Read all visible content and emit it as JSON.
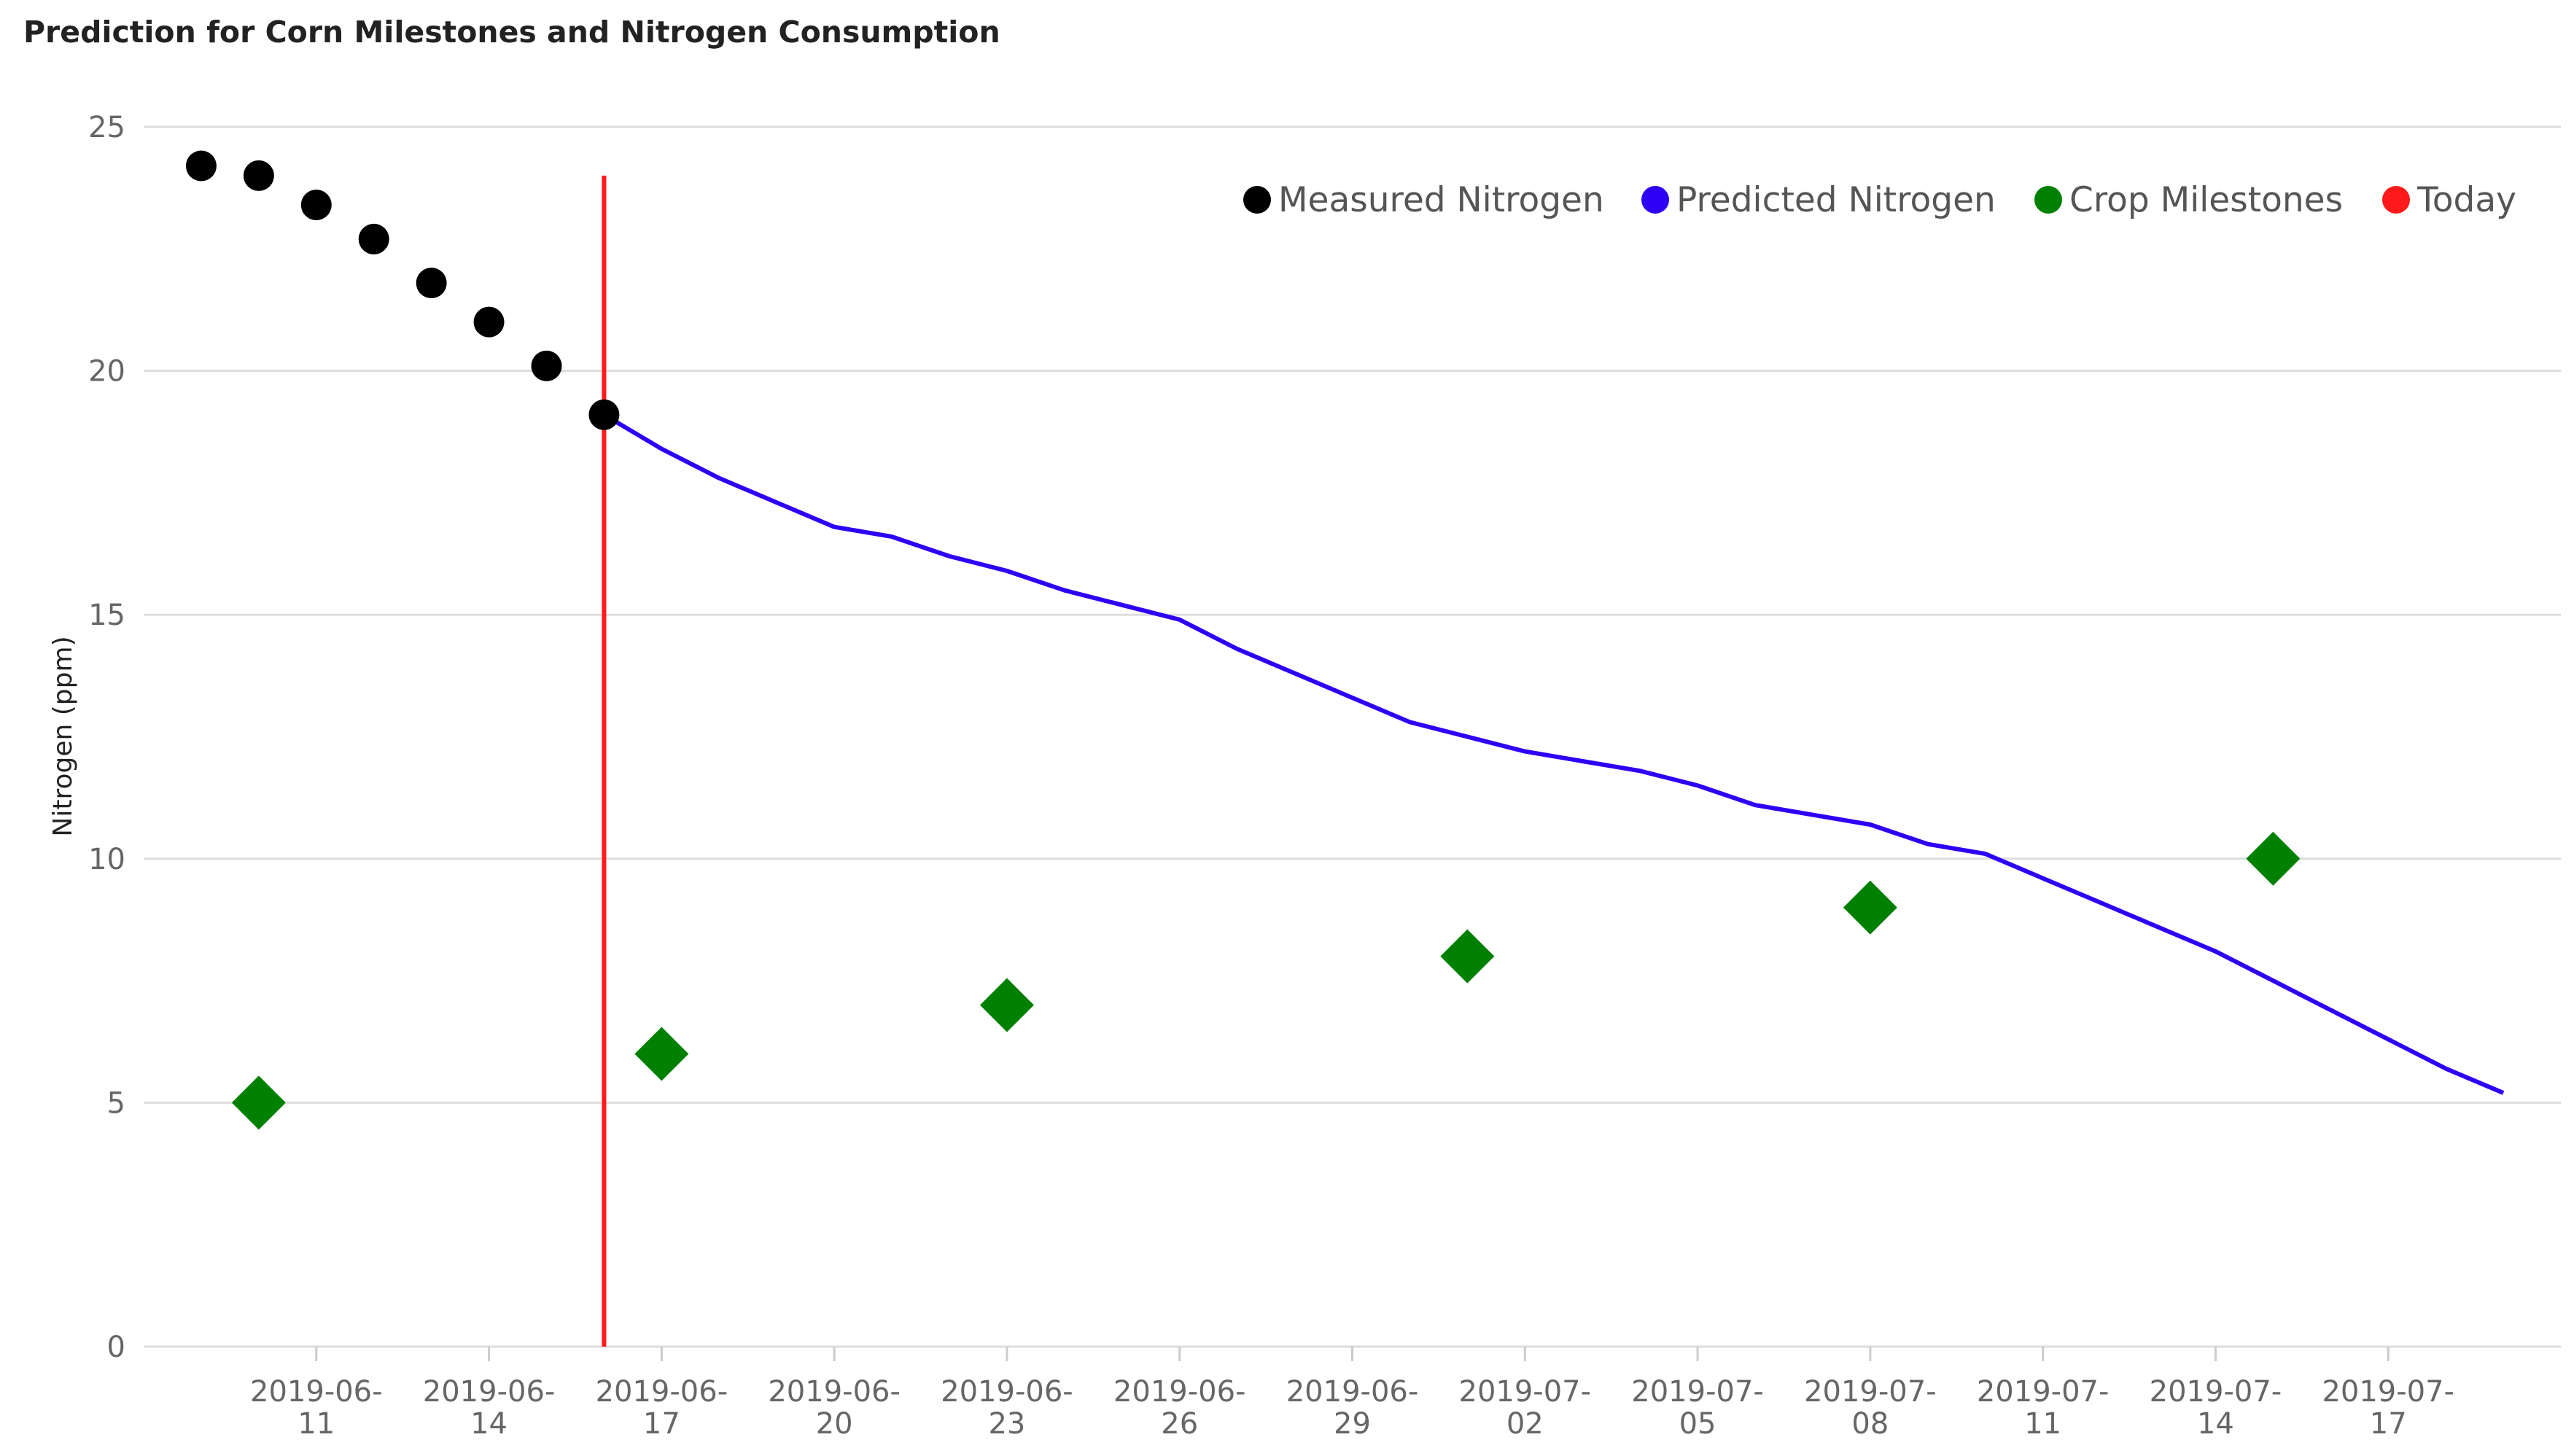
{
  "chart_data": {
    "type": "scatter",
    "title": "Prediction for Corn Milestones and Nitrogen Consumption",
    "ylabel": "Nitrogen (ppm)",
    "xlabel": "",
    "ylim": [
      0,
      25
    ],
    "xlim": [
      "2019-06-08",
      "2019-07-20"
    ],
    "yticks": [
      0,
      5,
      10,
      15,
      20,
      25
    ],
    "xticks": [
      {
        "date": "2019-06-11",
        "line1": "2019-06-",
        "line2": "11"
      },
      {
        "date": "2019-06-14",
        "line1": "2019-06-",
        "line2": "14"
      },
      {
        "date": "2019-06-17",
        "line1": "2019-06-",
        "line2": "17"
      },
      {
        "date": "2019-06-20",
        "line1": "2019-06-",
        "line2": "20"
      },
      {
        "date": "2019-06-23",
        "line1": "2019-06-",
        "line2": "23"
      },
      {
        "date": "2019-06-26",
        "line1": "2019-06-",
        "line2": "26"
      },
      {
        "date": "2019-06-29",
        "line1": "2019-06-",
        "line2": "29"
      },
      {
        "date": "2019-07-02",
        "line1": "2019-07-",
        "line2": "02"
      },
      {
        "date": "2019-07-05",
        "line1": "2019-07-",
        "line2": "05"
      },
      {
        "date": "2019-07-08",
        "line1": "2019-07-",
        "line2": "08"
      },
      {
        "date": "2019-07-11",
        "line1": "2019-07-",
        "line2": "11"
      },
      {
        "date": "2019-07-14",
        "line1": "2019-07-",
        "line2": "14"
      },
      {
        "date": "2019-07-17",
        "line1": "2019-07-",
        "line2": "17"
      }
    ],
    "grid": true,
    "legend_position": "top-right",
    "legend": [
      {
        "name": "Measured Nitrogen",
        "color": "#000000"
      },
      {
        "name": "Predicted Nitrogen",
        "color": "#2d00f5"
      },
      {
        "name": "Crop Milestones",
        "color": "#008000"
      },
      {
        "name": "Today",
        "color": "#ff1a1a"
      }
    ],
    "series": [
      {
        "name": "Measured Nitrogen",
        "type": "scatter",
        "marker": "circle",
        "color": "#000000",
        "points": [
          {
            "x": "2019-06-09",
            "y": 24.2
          },
          {
            "x": "2019-06-10",
            "y": 24.0
          },
          {
            "x": "2019-06-11",
            "y": 23.4
          },
          {
            "x": "2019-06-12",
            "y": 22.7
          },
          {
            "x": "2019-06-13",
            "y": 21.8
          },
          {
            "x": "2019-06-14",
            "y": 21.0
          },
          {
            "x": "2019-06-15",
            "y": 20.1
          },
          {
            "x": "2019-06-16",
            "y": 19.1
          }
        ]
      },
      {
        "name": "Predicted Nitrogen",
        "type": "line",
        "color": "#2d00f5",
        "points": [
          {
            "x": "2019-06-16",
            "y": 19.1
          },
          {
            "x": "2019-06-17",
            "y": 18.4
          },
          {
            "x": "2019-06-18",
            "y": 17.8
          },
          {
            "x": "2019-06-19",
            "y": 17.3
          },
          {
            "x": "2019-06-20",
            "y": 16.8
          },
          {
            "x": "2019-06-21",
            "y": 16.6
          },
          {
            "x": "2019-06-22",
            "y": 16.2
          },
          {
            "x": "2019-06-23",
            "y": 15.9
          },
          {
            "x": "2019-06-24",
            "y": 15.5
          },
          {
            "x": "2019-06-25",
            "y": 15.2
          },
          {
            "x": "2019-06-26",
            "y": 14.9
          },
          {
            "x": "2019-06-27",
            "y": 14.3
          },
          {
            "x": "2019-06-28",
            "y": 13.8
          },
          {
            "x": "2019-06-29",
            "y": 13.3
          },
          {
            "x": "2019-06-30",
            "y": 12.8
          },
          {
            "x": "2019-07-01",
            "y": 12.5
          },
          {
            "x": "2019-07-02",
            "y": 12.2
          },
          {
            "x": "2019-07-03",
            "y": 12.0
          },
          {
            "x": "2019-07-04",
            "y": 11.8
          },
          {
            "x": "2019-07-05",
            "y": 11.5
          },
          {
            "x": "2019-07-06",
            "y": 11.1
          },
          {
            "x": "2019-07-07",
            "y": 10.9
          },
          {
            "x": "2019-07-08",
            "y": 10.7
          },
          {
            "x": "2019-07-09",
            "y": 10.3
          },
          {
            "x": "2019-07-10",
            "y": 10.1
          },
          {
            "x": "2019-07-11",
            "y": 9.6
          },
          {
            "x": "2019-07-12",
            "y": 9.1
          },
          {
            "x": "2019-07-13",
            "y": 8.6
          },
          {
            "x": "2019-07-14",
            "y": 8.1
          },
          {
            "x": "2019-07-15",
            "y": 7.5
          },
          {
            "x": "2019-07-16",
            "y": 6.9
          },
          {
            "x": "2019-07-17",
            "y": 6.3
          },
          {
            "x": "2019-07-18",
            "y": 5.7
          },
          {
            "x": "2019-07-19",
            "y": 5.2
          }
        ]
      },
      {
        "name": "Crop Milestones",
        "type": "scatter",
        "marker": "diamond",
        "color": "#008000",
        "points": [
          {
            "x": "2019-06-10",
            "y": 5
          },
          {
            "x": "2019-06-17",
            "y": 6
          },
          {
            "x": "2019-06-23",
            "y": 7
          },
          {
            "x": "2019-07-01",
            "y": 8
          },
          {
            "x": "2019-07-08",
            "y": 9
          },
          {
            "x": "2019-07-15",
            "y": 10
          }
        ]
      },
      {
        "name": "Today",
        "type": "vline",
        "color": "#ff1a1a",
        "x": "2019-06-16",
        "y_range": [
          0,
          24
        ]
      }
    ]
  }
}
